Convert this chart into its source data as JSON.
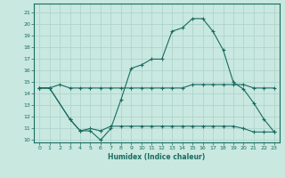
{
  "xlabel": "Humidex (Indice chaleur)",
  "background_color": "#c8e8e0",
  "grid_color": "#b0d4cc",
  "line_color": "#1a6b60",
  "xlim": [
    -0.5,
    23.5
  ],
  "ylim": [
    9.8,
    21.8
  ],
  "xticks": [
    0,
    1,
    2,
    3,
    4,
    5,
    6,
    7,
    8,
    9,
    10,
    11,
    12,
    13,
    14,
    15,
    16,
    17,
    18,
    19,
    20,
    21,
    22,
    23
  ],
  "yticks": [
    10,
    11,
    12,
    13,
    14,
    15,
    16,
    17,
    18,
    19,
    20,
    21
  ],
  "line1_x": [
    0,
    1,
    2,
    3,
    4,
    5,
    6,
    7,
    8,
    9,
    10,
    11,
    12,
    13,
    14,
    15,
    16,
    17,
    18,
    19,
    20,
    21,
    22,
    23
  ],
  "line1_y": [
    14.5,
    14.5,
    14.8,
    14.5,
    14.5,
    14.5,
    14.5,
    14.5,
    14.5,
    14.5,
    14.5,
    14.5,
    14.5,
    14.5,
    14.5,
    14.8,
    14.8,
    14.8,
    14.8,
    14.8,
    14.8,
    14.5,
    14.5,
    14.5
  ],
  "line2_x": [
    0,
    1,
    3,
    4,
    5,
    6,
    7,
    8,
    9,
    10,
    11,
    12,
    13,
    14,
    15,
    16,
    17,
    18,
    19,
    20,
    21,
    22,
    23
  ],
  "line2_y": [
    14.5,
    14.5,
    11.8,
    10.8,
    10.8,
    10.0,
    11.0,
    13.5,
    16.2,
    16.5,
    17.0,
    17.0,
    19.4,
    19.7,
    20.5,
    20.5,
    19.4,
    17.8,
    15.0,
    14.4,
    13.2,
    11.8,
    10.7
  ],
  "line3_x": [
    0,
    1,
    3,
    4,
    5,
    6,
    7,
    8,
    9,
    10,
    11,
    12,
    13,
    14,
    15,
    16,
    17,
    18,
    19,
    20,
    21,
    22,
    23
  ],
  "line3_y": [
    14.5,
    14.5,
    11.8,
    10.8,
    11.0,
    10.8,
    11.2,
    11.2,
    11.2,
    11.2,
    11.2,
    11.2,
    11.2,
    11.2,
    11.2,
    11.2,
    11.2,
    11.2,
    11.2,
    11.0,
    10.7,
    10.7,
    10.7
  ]
}
